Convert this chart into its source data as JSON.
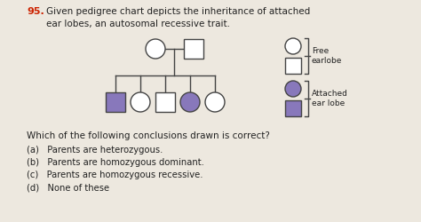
{
  "title_num": "95.",
  "title_text": "Given pedigree chart depicts the inheritance of attached\near lobes, an autosomal recessive trait.",
  "question": "Which of the following conclusions drawn is correct?",
  "options": [
    "(a)   Parents are heterozygous.",
    "(b)   Parents are homozygous dominant.",
    "(c)   Parents are homozygous recessive.",
    "(d)   None of these"
  ],
  "legend_free_text": "Free\nearlobe",
  "legend_attached_text": "Attached\near lobe",
  "bg_color": "#ede8df",
  "title_num_color": "#cc2200",
  "text_color": "#222222",
  "free_fill": "#ffffff",
  "attached_fill": "#8878bb",
  "edge_color": "#444444",
  "fig_w": 4.74,
  "fig_h": 2.5,
  "dpi": 100
}
